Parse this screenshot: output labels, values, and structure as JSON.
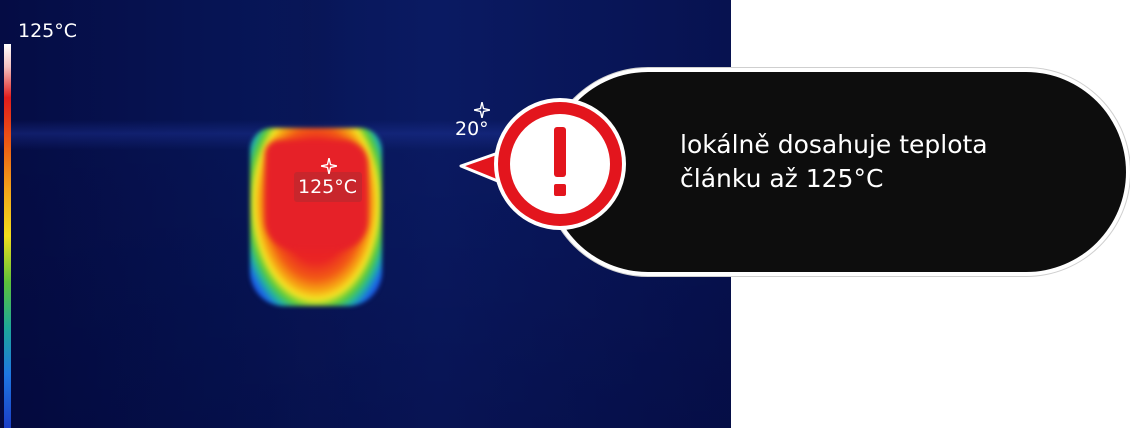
{
  "thermal_view": {
    "scale_max": "125°C",
    "spot_max_temp": "125°C",
    "spot_ref_temp": "20°"
  },
  "callout": {
    "text_line1": "lokálně dosahuje teplota",
    "text_line2": "článku až 125°C",
    "icon": "exclamation-icon",
    "accent_color": "#e3151d"
  }
}
